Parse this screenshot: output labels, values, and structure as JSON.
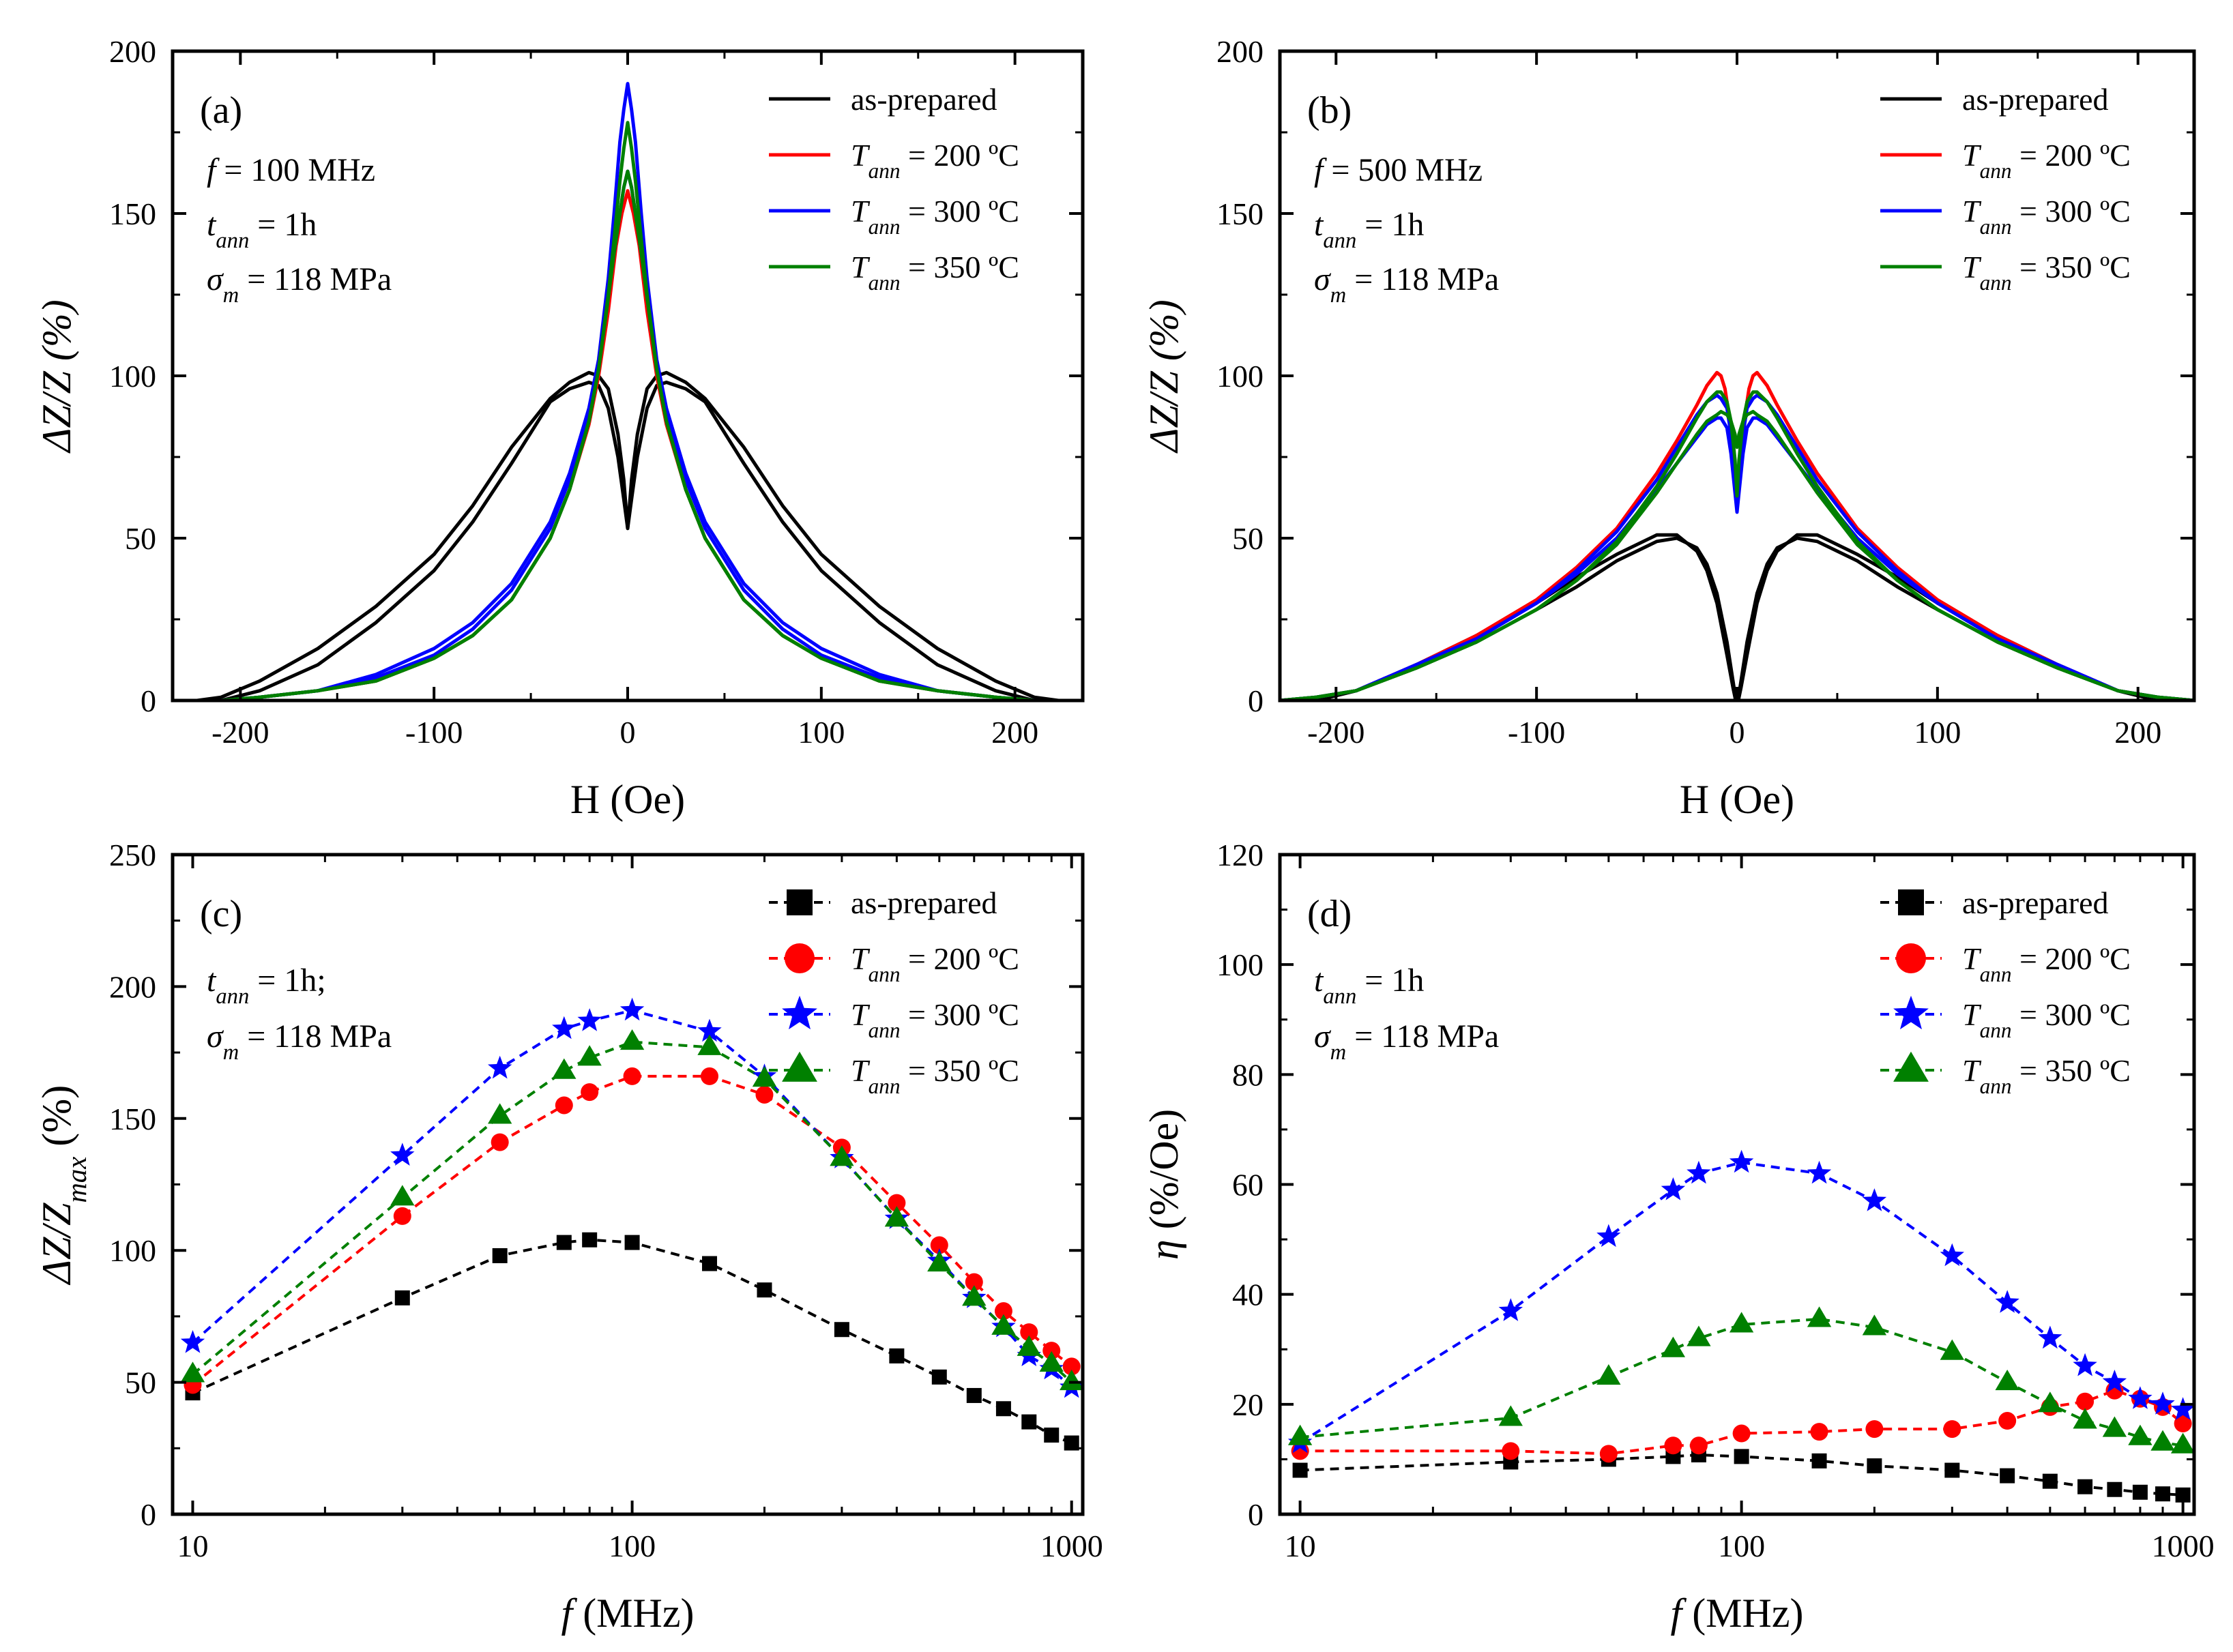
{
  "figure": {
    "colors": {
      "as_prepared": "#000000",
      "t200": "#ff0000",
      "t300": "#0000ff",
      "t350": "#008000"
    }
  },
  "chart_data": [
    {
      "type": "line",
      "panel": "(a)",
      "xlabel": "H (Oe)",
      "ylabel": "ΔZ/Z (%)",
      "xlim": [
        -235,
        235
      ],
      "ylim": [
        0,
        200
      ],
      "xticks": [
        -200,
        -100,
        0,
        100,
        200
      ],
      "yticks": [
        0,
        50,
        100,
        150,
        200
      ],
      "annotations": [
        {
          "var": "f",
          "text": " = 100 MHz"
        },
        {
          "var": "t",
          "sub": "ann",
          "text": " = 1h"
        },
        {
          "var": "σ",
          "sub": "m",
          "text": " = 118 MPa"
        }
      ],
      "legend": [
        {
          "name": "as-prepared",
          "key": "as_prepared"
        },
        {
          "var": "T",
          "sub": "ann",
          "name": " = 200 ºC",
          "key": "t200"
        },
        {
          "var": "T",
          "sub": "ann",
          "name": " = 300 ºC",
          "key": "t300"
        },
        {
          "var": "T",
          "sub": "ann",
          "name": " = 350 ºC",
          "key": "t350"
        }
      ],
      "series": [
        {
          "key": "as_prepared",
          "H": [
            0,
            2,
            5,
            10,
            15,
            20,
            30,
            40,
            60,
            80,
            100,
            130,
            160,
            190,
            210,
            235
          ],
          "branches": [
            [
              53,
              62,
              75,
              90,
              97,
              98,
              96,
              92,
              73,
              55,
              40,
              24,
              11,
              3,
              0,
              -1
            ],
            [
              53,
              68,
              82,
              96,
              100,
              101,
              98,
              93,
              78,
              60,
              45,
              29,
              16,
              6,
              1,
              -1
            ]
          ]
        },
        {
          "key": "t200",
          "H": [
            0,
            3,
            6,
            10,
            15,
            20,
            30,
            40,
            60,
            80,
            100,
            130,
            160,
            190,
            210,
            235
          ],
          "branches": [
            [
              157,
              150,
              140,
              120,
              100,
              85,
              65,
              50,
              31,
              20,
              13,
              6,
              3,
              1,
              0,
              0
            ]
          ]
        },
        {
          "key": "t300",
          "H": [
            0,
            2,
            4,
            7,
            10,
            15,
            20,
            30,
            40,
            60,
            80,
            100,
            130,
            160,
            190,
            210,
            235
          ],
          "branches": [
            [
              190,
              182,
              172,
              150,
              130,
              105,
              90,
              70,
              55,
              36,
              24,
              16,
              8,
              3,
              1,
              0,
              0
            ],
            [
              163,
              158,
              150,
              138,
              125,
              104,
              88,
              68,
              53,
              34,
              22,
              14,
              7,
              3,
              1,
              0,
              0
            ]
          ]
        },
        {
          "key": "t350",
          "H": [
            0,
            2,
            4,
            7,
            10,
            15,
            20,
            30,
            40,
            60,
            80,
            100,
            130,
            160,
            190,
            210,
            235
          ],
          "branches": [
            [
              178,
              170,
              160,
              142,
              125,
              102,
              86,
              65,
              50,
              31,
              20,
              13,
              6,
              3,
              1,
              0,
              0
            ],
            [
              163,
              158,
              150,
              138,
              124,
              102,
              86,
              65,
              50,
              31,
              20,
              13,
              6,
              3,
              1,
              0,
              0
            ]
          ]
        }
      ]
    },
    {
      "type": "line",
      "panel": "(b)",
      "xlabel": "H (Oe)",
      "ylabel": "ΔZ/Z (%)",
      "xlim": [
        -228,
        228
      ],
      "ylim": [
        0,
        200
      ],
      "xticks": [
        -200,
        -100,
        0,
        100,
        200
      ],
      "yticks": [
        0,
        50,
        100,
        150,
        200
      ],
      "annotations": [
        {
          "var": "f",
          "text": " = 500 MHz"
        },
        {
          "var": "t",
          "sub": "ann",
          "text": " = 1h"
        },
        {
          "var": "σ",
          "sub": "m",
          "text": " = 118 MPa"
        }
      ],
      "legend": [
        {
          "name": "as-prepared",
          "key": "as_prepared"
        },
        {
          "var": "T",
          "sub": "ann",
          "name": " = 200 ºC",
          "key": "t200"
        },
        {
          "var": "T",
          "sub": "ann",
          "name": " = 300 ºC",
          "key": "t300"
        },
        {
          "var": "T",
          "sub": "ann",
          "name": " = 350 ºC",
          "key": "t350"
        }
      ],
      "series": [
        {
          "key": "as_prepared",
          "H": [
            0,
            2,
            5,
            10,
            15,
            20,
            30,
            40,
            60,
            80,
            100,
            130,
            160,
            190,
            210,
            228
          ],
          "branches": [
            [
              -2,
              6,
              18,
              33,
              42,
              47,
              50,
              49,
              43,
              35,
              28,
              18,
              10,
              3,
              0,
              0
            ],
            [
              -2,
              4,
              14,
              30,
              40,
              46,
              51,
              51,
              45,
              38,
              30,
              20,
              11,
              3,
              0,
              0
            ]
          ]
        },
        {
          "key": "t200",
          "H": [
            0,
            2,
            4,
            6,
            8,
            10,
            15,
            20,
            30,
            40,
            60,
            80,
            100,
            130,
            160,
            190,
            210,
            228
          ],
          "branches": [
            [
              64,
              75,
              88,
              96,
              100,
              101,
              97,
              91,
              80,
              70,
              53,
              41,
              31,
              20,
              11,
              3,
              1,
              0
            ]
          ]
        },
        {
          "key": "t300",
          "H": [
            0,
            1,
            3,
            5,
            8,
            10,
            15,
            20,
            30,
            40,
            60,
            80,
            100,
            130,
            160,
            190,
            210,
            228
          ],
          "branches": [
            [
              58,
              64,
              76,
              84,
              87,
              87,
              85,
              81,
              73,
              65,
              50,
              39,
              30,
              19,
              11,
              3,
              1,
              0
            ],
            [
              62,
              70,
              82,
              90,
              93,
              94,
              92,
              88,
              78,
              68,
              52,
              40,
              30,
              19,
              11,
              3,
              1,
              0
            ]
          ]
        },
        {
          "key": "t350",
          "H": [
            0,
            1,
            3,
            5,
            8,
            10,
            15,
            20,
            30,
            40,
            60,
            80,
            100,
            130,
            160,
            190,
            210,
            228
          ],
          "branches": [
            [
              63,
              74,
              86,
              92,
              95,
              95,
              92,
              87,
              76,
              66,
              49,
              37,
              28,
              18,
              10,
              3,
              1,
              0
            ],
            [
              78,
              82,
              86,
              88,
              89,
              88,
              86,
              82,
              73,
              64,
              48,
              37,
              28,
              18,
              10,
              3,
              1,
              0
            ]
          ]
        }
      ]
    },
    {
      "type": "line",
      "panel": "(c)",
      "xscale": "log",
      "xlabel_var": "f",
      "xlabel": " (MHz)",
      "ylabel": "ΔZ/Z",
      "ylabel_sub": "max",
      "ylabel_tail": " (%)",
      "xlim": [
        9,
        1060
      ],
      "ylim": [
        0,
        250
      ],
      "xticks": [
        10,
        100,
        1000
      ],
      "yticks": [
        0,
        50,
        100,
        150,
        200,
        250
      ],
      "annotations": [
        {
          "var": "t",
          "sub": "ann",
          "text": " = 1h;"
        },
        {
          "var": "σ",
          "sub": "m",
          "text": " = 118 MPa"
        }
      ],
      "legend": [
        {
          "name": "as-prepared",
          "key": "as_prepared",
          "marker": "square"
        },
        {
          "var": "T",
          "sub": "ann",
          "name": " = 200 ºC",
          "key": "t200",
          "marker": "circle"
        },
        {
          "var": "T",
          "sub": "ann",
          "name": " = 300 ºC",
          "key": "t300",
          "marker": "star"
        },
        {
          "var": "T",
          "sub": "ann",
          "name": " = 350 ºC",
          "key": "t350",
          "marker": "triangle"
        }
      ],
      "x": [
        10,
        30,
        50,
        70,
        80,
        100,
        150,
        200,
        300,
        400,
        500,
        600,
        700,
        800,
        900,
        1000
      ],
      "series": [
        {
          "key": "as_prepared",
          "marker": "square",
          "values": [
            46,
            82,
            98,
            103,
            104,
            103,
            95,
            85,
            70,
            60,
            52,
            45,
            40,
            35,
            30,
            27
          ]
        },
        {
          "key": "t200",
          "marker": "circle",
          "values": [
            49,
            113,
            141,
            155,
            160,
            166,
            166,
            159,
            139,
            118,
            102,
            88,
            77,
            69,
            62,
            56
          ]
        },
        {
          "key": "t300",
          "marker": "star",
          "values": [
            65,
            136,
            169,
            184,
            187,
            191,
            183,
            166,
            135,
            112,
            96,
            82,
            71,
            60,
            55,
            48
          ]
        },
        {
          "key": "t350",
          "marker": "triangle",
          "values": [
            53,
            120,
            151,
            168,
            173,
            179,
            177,
            165,
            135,
            112,
            95,
            82,
            71,
            63,
            57,
            50
          ]
        }
      ]
    },
    {
      "type": "line",
      "panel": "(d)",
      "xscale": "log",
      "xlabel_var": "f",
      "xlabel": " (MHz)",
      "ylabel_var": "η",
      "ylabel": " (%/Oe)",
      "xlim": [
        9,
        1060
      ],
      "ylim": [
        0,
        120
      ],
      "xticks": [
        10,
        100,
        1000
      ],
      "yticks": [
        0,
        20,
        40,
        60,
        80,
        100,
        120
      ],
      "annotations": [
        {
          "var": "t",
          "sub": "ann",
          "text": " = 1h"
        },
        {
          "var": "σ",
          "sub": "m",
          "text": " = 118 MPa"
        }
      ],
      "legend": [
        {
          "name": "as-prepared",
          "key": "as_prepared",
          "marker": "square"
        },
        {
          "var": "T",
          "sub": "ann",
          "name": " = 200 ºC",
          "key": "t200",
          "marker": "circle"
        },
        {
          "var": "T",
          "sub": "ann",
          "name": " = 300 ºC",
          "key": "t300",
          "marker": "star"
        },
        {
          "var": "T",
          "sub": "ann",
          "name": " = 350 ºC",
          "key": "t350",
          "marker": "triangle"
        }
      ],
      "x": [
        10,
        30,
        50,
        70,
        80,
        100,
        150,
        200,
        300,
        400,
        500,
        600,
        700,
        800,
        900,
        1000
      ],
      "series": [
        {
          "key": "as_prepared",
          "marker": "square",
          "values": [
            8,
            9.5,
            10,
            10.5,
            10.8,
            10.5,
            9.7,
            8.8,
            8,
            7,
            6,
            5,
            4.5,
            4,
            3.7,
            3.5
          ]
        },
        {
          "key": "t200",
          "marker": "circle",
          "values": [
            11.5,
            11.5,
            11,
            12.5,
            12.5,
            14.7,
            15,
            15.5,
            15.5,
            17,
            19.5,
            20.5,
            22.5,
            21,
            19.5,
            16.5
          ]
        },
        {
          "key": "t300",
          "marker": "star",
          "values": [
            13,
            37,
            50.5,
            59,
            62,
            64,
            62,
            57,
            47,
            38.5,
            32,
            27,
            24,
            21,
            20,
            19
          ]
        },
        {
          "key": "t350",
          "marker": "triangle",
          "values": [
            14,
            17.5,
            25,
            30,
            32,
            34.5,
            35.5,
            34,
            29.5,
            24,
            20,
            17,
            15.5,
            14,
            13,
            12.5
          ]
        }
      ]
    }
  ]
}
